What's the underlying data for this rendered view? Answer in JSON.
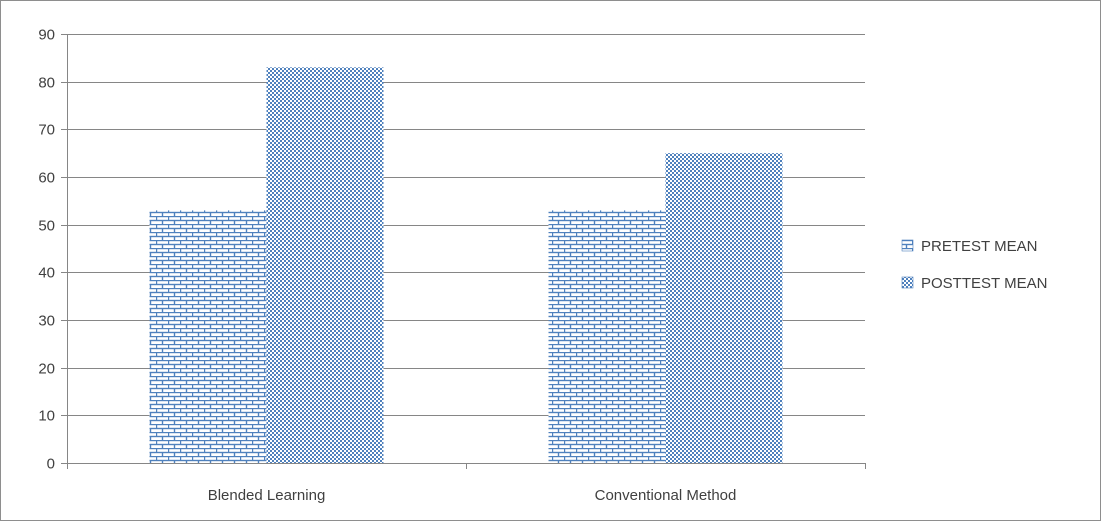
{
  "chart_data": {
    "type": "bar",
    "categories": [
      "Blended Learning",
      "Conventional Method"
    ],
    "series": [
      {
        "name": "PRETEST MEAN",
        "values": [
          53,
          53
        ]
      },
      {
        "name": "POSTTEST MEAN",
        "values": [
          83,
          65
        ]
      }
    ],
    "title": "",
    "xlabel": "",
    "ylabel": "",
    "ylim": [
      0,
      90
    ],
    "yticks": [
      0,
      10,
      20,
      30,
      40,
      50,
      60,
      70,
      80,
      90
    ],
    "grid": true,
    "legend_position": "right",
    "colors": {
      "bar_base": "#ffffff",
      "bar_pattern": "#4f81bd",
      "gridline": "#868686",
      "axis": "#868686",
      "text": "#404040"
    }
  }
}
